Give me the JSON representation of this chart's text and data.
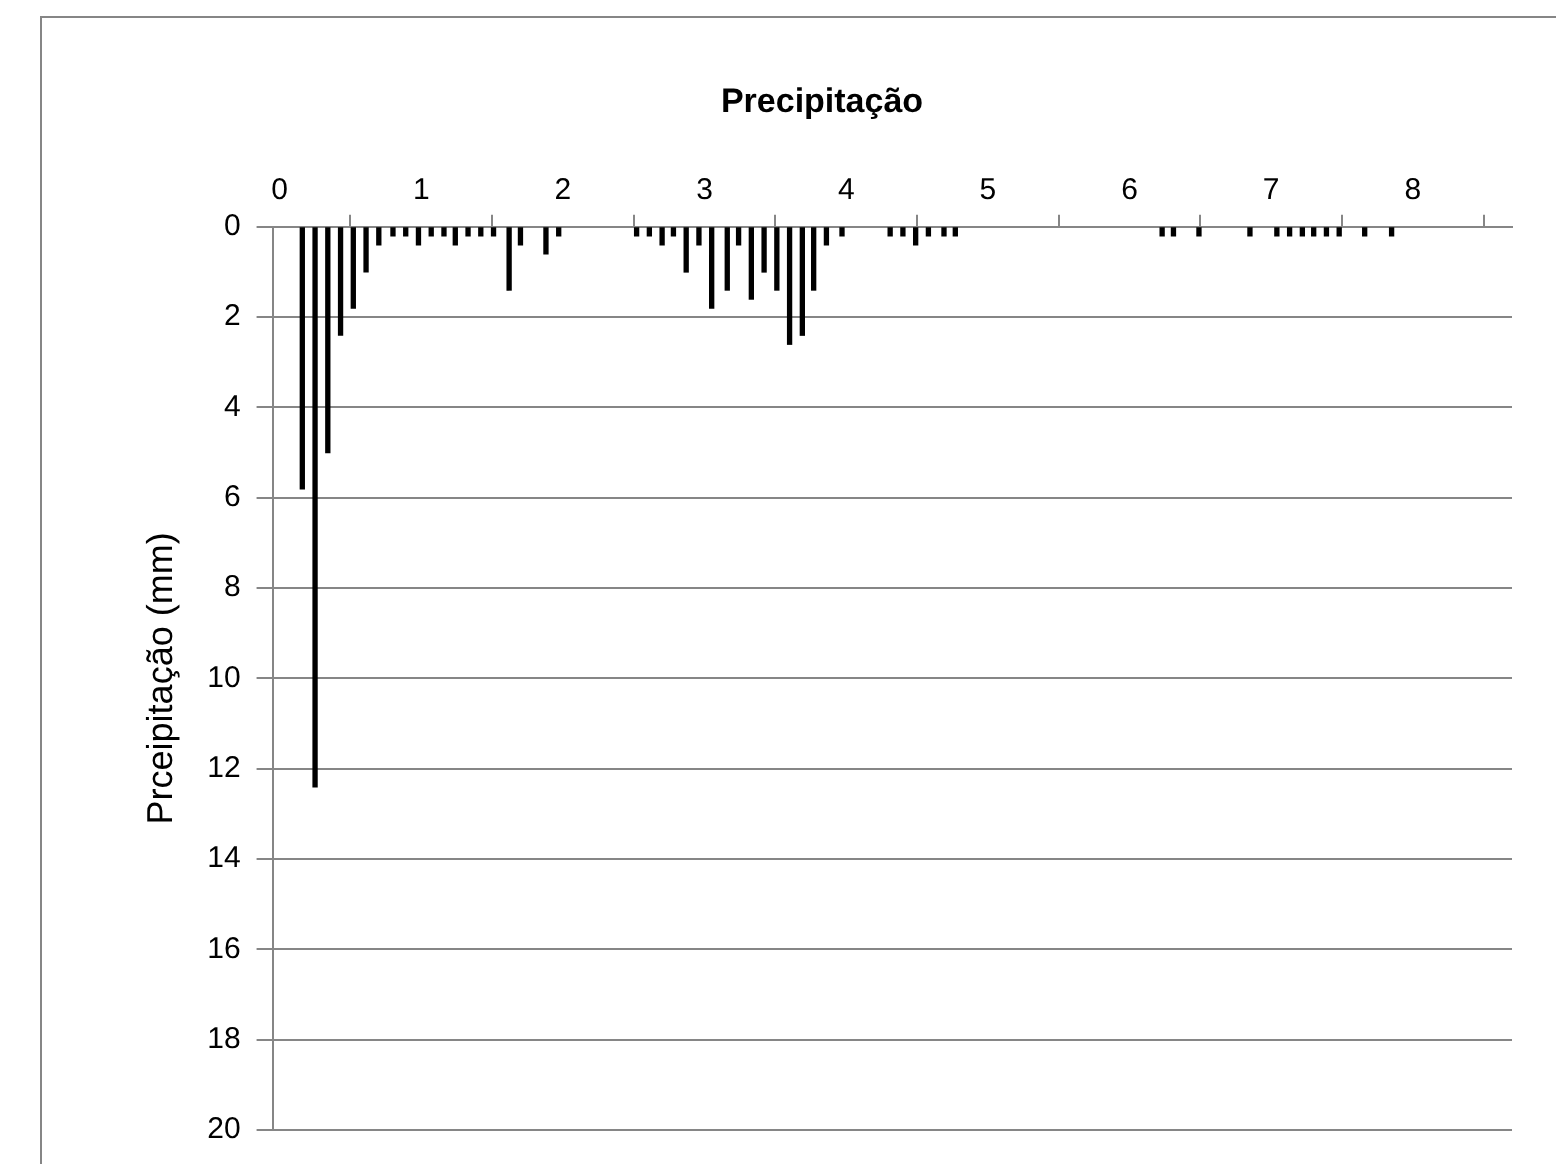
{
  "chart_data": {
    "type": "bar",
    "title": "Precipitação",
    "ylabel": "Prceipitação (mm)",
    "series": [
      {
        "color": "#000000",
        "x": [
          0.16,
          0.25,
          0.34,
          0.43,
          0.52,
          0.61,
          0.7,
          0.8,
          0.89,
          0.98,
          1.07,
          1.16,
          1.24,
          1.33,
          1.42,
          1.51,
          1.62,
          1.7,
          1.88,
          1.97,
          2.52,
          2.61,
          2.7,
          2.78,
          2.87,
          2.96,
          3.05,
          3.16,
          3.24,
          3.33,
          3.42,
          3.51,
          3.6,
          3.69,
          3.77,
          3.86,
          3.97,
          4.31,
          4.4,
          4.49,
          4.58,
          4.69,
          4.77,
          6.23,
          6.31,
          6.49,
          6.85,
          7.04,
          7.13,
          7.22,
          7.3,
          7.39,
          7.48,
          7.66,
          7.85
        ],
        "values": [
          5.8,
          12.4,
          5.0,
          2.4,
          1.8,
          1.0,
          0.4,
          0.2,
          0.2,
          0.4,
          0.2,
          0.2,
          0.4,
          0.2,
          0.2,
          0.2,
          1.4,
          0.4,
          0.6,
          0.2,
          0.2,
          0.2,
          0.4,
          0.2,
          1.0,
          0.4,
          1.8,
          1.4,
          0.4,
          1.6,
          1.0,
          1.4,
          2.6,
          2.4,
          1.4,
          0.4,
          0.2,
          0.2,
          0.2,
          0.4,
          0.2,
          0.2,
          0.2,
          0.2,
          0.2,
          0.2,
          0.2,
          0.2,
          0.2,
          0.2,
          0.2,
          0.2,
          0.2,
          0.2,
          0.2
        ]
      }
    ],
    "xlim": [
      -0.05,
      8.7
    ],
    "xticks": [
      0,
      1,
      2,
      3,
      4,
      5,
      6,
      7,
      8
    ],
    "ylim": [
      20,
      0
    ],
    "yticks": [
      0,
      2,
      4,
      6,
      8,
      10,
      12,
      14,
      16,
      18,
      20
    ],
    "grid": "y",
    "legend": false
  }
}
